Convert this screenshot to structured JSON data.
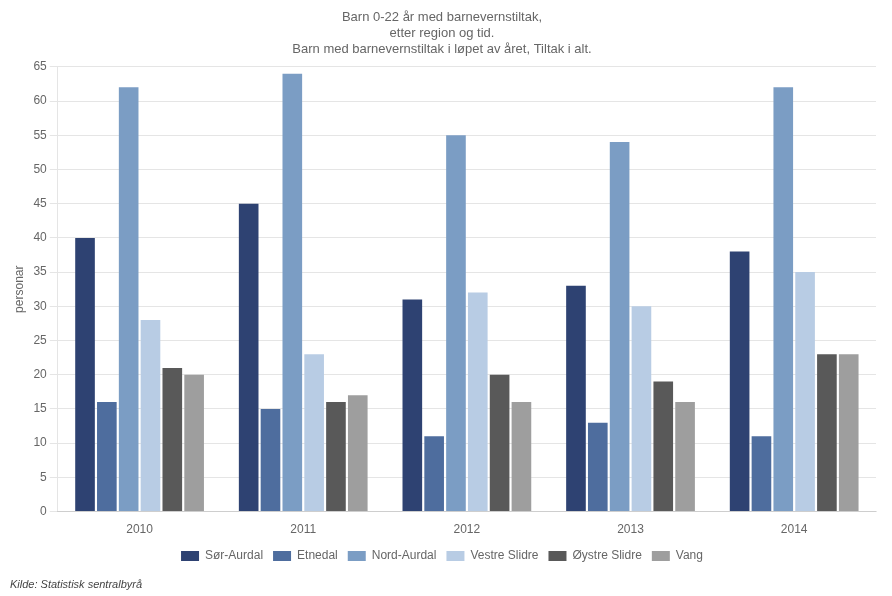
{
  "chart_data": {
    "type": "bar",
    "title": "Barn 0-22 år med barnevernstiltak,\netter region og tid.\nBarn med barnevernstiltak i løpet av året, Tiltak i alt.",
    "ylabel": "personar",
    "annotations": [
      "Kilde: Statistisk sentralbyrå"
    ],
    "categories": [
      "2010",
      "2011",
      "2012",
      "2013",
      "2014"
    ],
    "series": [
      {
        "name": "Sør-Aurdal",
        "color": "#2e4272",
        "values": [
          40,
          45,
          31,
          33,
          38
        ]
      },
      {
        "name": "Etnedal",
        "color": "#4e6d9e",
        "values": [
          16,
          15,
          11,
          13,
          11
        ]
      },
      {
        "name": "Nord-Aurdal",
        "color": "#7b9dc4",
        "values": [
          62,
          64,
          55,
          54,
          62
        ]
      },
      {
        "name": "Vestre Slidre",
        "color": "#b8cce4",
        "values": [
          28,
          23,
          32,
          30,
          35
        ]
      },
      {
        "name": "Øystre Slidre",
        "color": "#595959",
        "values": [
          21,
          16,
          20,
          19,
          23
        ]
      },
      {
        "name": "Vang",
        "color": "#9e9e9e",
        "values": [
          20,
          17,
          16,
          16,
          23
        ]
      }
    ],
    "ylim": [
      0,
      65
    ],
    "yticks": [
      0,
      5,
      10,
      15,
      20,
      25,
      30,
      35,
      40,
      45,
      50,
      55,
      60,
      65
    ],
    "grid": true,
    "legend": "bottom"
  }
}
